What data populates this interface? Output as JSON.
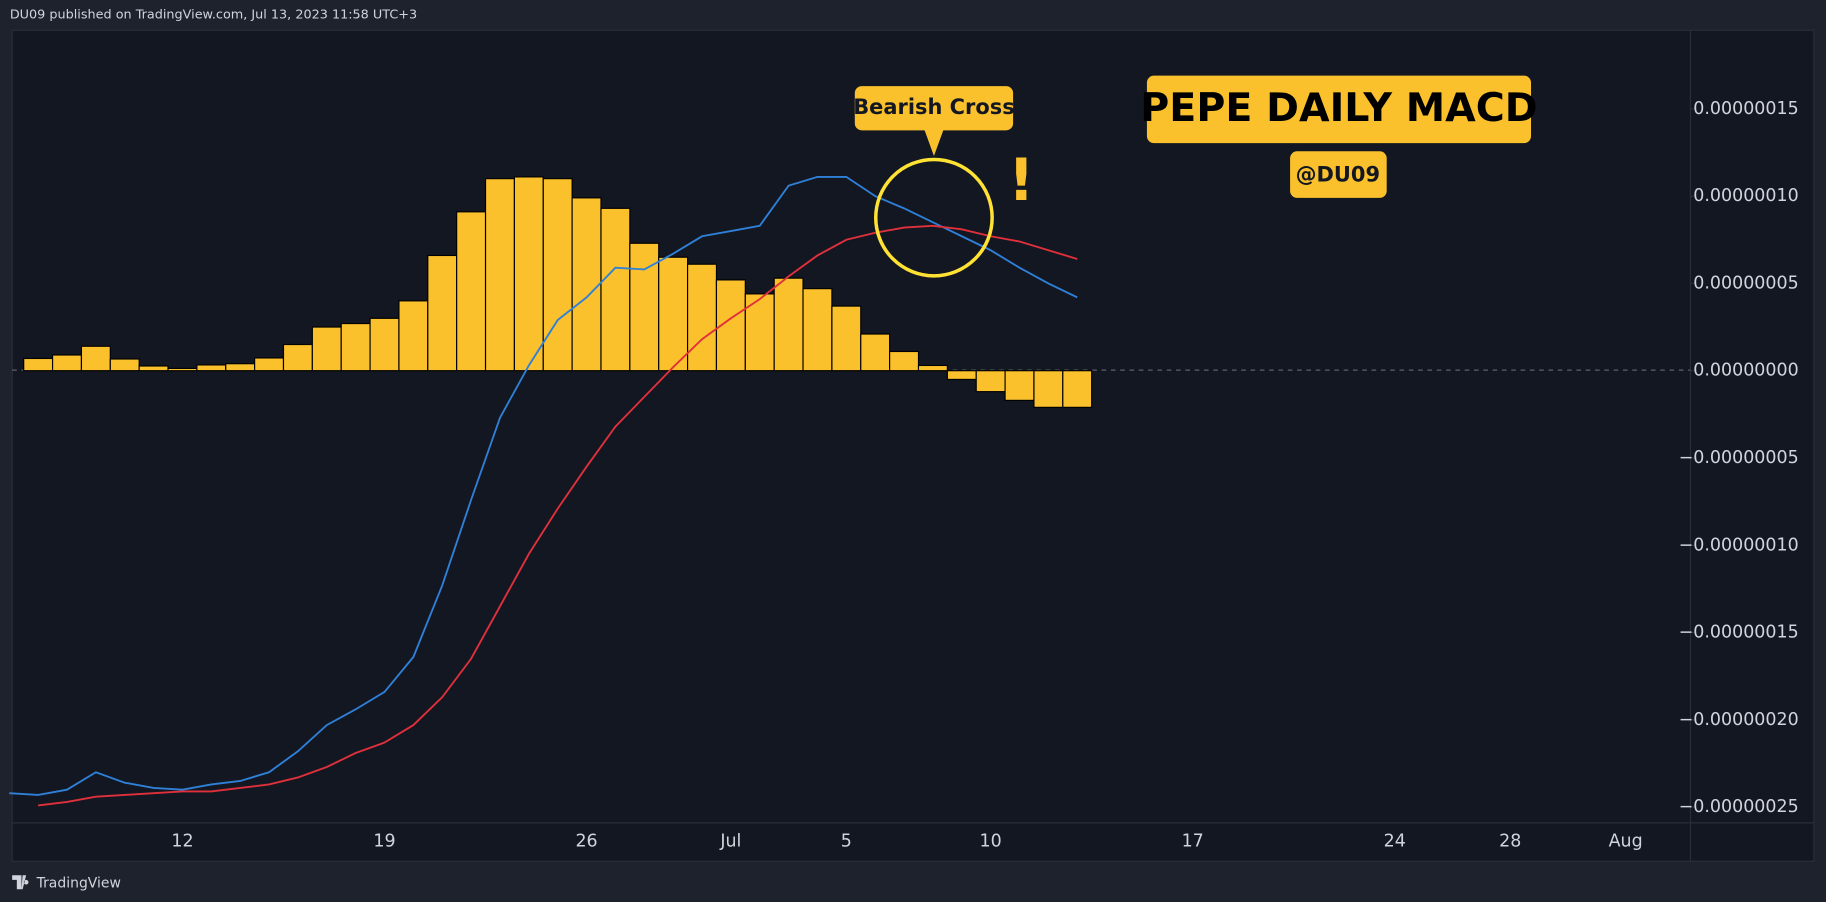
{
  "header": {
    "text": "DU09 published on TradingView.com, Jul 13, 2023 11:58 UTC+3"
  },
  "footer": {
    "brand": "TradingView"
  },
  "chart_data": {
    "type": "bar",
    "title": "PEPE DAILY MACD",
    "subtitle": "@DU09",
    "annotations": [
      {
        "text": "Bearish Cross"
      },
      {
        "text": "!"
      }
    ],
    "categories": [
      null,
      null,
      null,
      null,
      null,
      null,
      "12",
      null,
      null,
      null,
      null,
      null,
      null,
      "19",
      null,
      null,
      null,
      null,
      null,
      null,
      "26",
      null,
      null,
      null,
      null,
      "Jul",
      null,
      null,
      null,
      "5",
      null,
      null,
      null,
      null,
      "10",
      null,
      null,
      null,
      null,
      null,
      null,
      "17",
      null,
      null,
      null,
      null,
      null,
      null,
      "24",
      null,
      null,
      null,
      "28",
      null,
      null,
      null,
      "Aug",
      null
    ],
    "series": [
      {
        "type": "bar",
        "color": "#fbc12d",
        "values": [
          null,
          7e-09,
          9e-09,
          1.4e-08,
          6.7e-09,
          2.7e-09,
          1.3e-09,
          3.3e-09,
          4e-09,
          7.3e-09,
          1.5e-08,
          2.5e-08,
          2.7e-08,
          3e-08,
          4e-08,
          6.6e-08,
          9.1e-08,
          1.1e-07,
          1.11e-07,
          1.1e-07,
          9.9e-08,
          9.3e-08,
          7.3e-08,
          6.5e-08,
          6.1e-08,
          5.2e-08,
          4.4e-08,
          5.3e-08,
          4.7e-08,
          3.7e-08,
          2.1e-08,
          1.1e-08,
          3e-09,
          -5e-09,
          -1.2e-08,
          -1.7e-08,
          -2.1e-08,
          -2.1e-08,
          null,
          null,
          null,
          null,
          null,
          null,
          null,
          null,
          null,
          null,
          null,
          null,
          null,
          null,
          null,
          null,
          null,
          null,
          null,
          null
        ]
      },
      {
        "type": "line",
        "color": "#2f80d8",
        "values": [
          -2.42e-07,
          -2.43e-07,
          -2.4e-07,
          -2.3e-07,
          -2.36e-07,
          -2.39e-07,
          -2.4e-07,
          -2.37e-07,
          -2.35e-07,
          -2.3e-07,
          -2.18e-07,
          -2.03e-07,
          -1.94e-07,
          -1.84e-07,
          -1.64e-07,
          -1.23e-07,
          -7.4e-08,
          -2.7e-08,
          3e-09,
          2.9e-08,
          4.2e-08,
          5.9e-08,
          5.8e-08,
          6.7e-08,
          7.7e-08,
          8e-08,
          8.3e-08,
          1.06e-07,
          1.11e-07,
          1.11e-07,
          1e-07,
          9.3e-08,
          8.5e-08,
          7.7e-08,
          6.9e-08,
          5.9e-08,
          5e-08,
          4.2e-08,
          null,
          null,
          null,
          null,
          null,
          null,
          null,
          null,
          null,
          null,
          null,
          null,
          null,
          null,
          null,
          null,
          null,
          null,
          null,
          null
        ]
      },
      {
        "type": "line",
        "color": "#e0303b",
        "values": [
          null,
          -2.49e-07,
          -2.47e-07,
          -2.44e-07,
          -2.43e-07,
          -2.42e-07,
          -2.41e-07,
          -2.41e-07,
          -2.39e-07,
          -2.37e-07,
          -2.33e-07,
          -2.27e-07,
          -2.19e-07,
          -2.13e-07,
          -2.03e-07,
          -1.87e-07,
          -1.65e-07,
          -1.35e-07,
          -1.05e-07,
          -7.9e-08,
          -5.5e-08,
          -3.2e-08,
          -1.5e-08,
          2e-09,
          1.8e-08,
          3e-08,
          4.1e-08,
          5.4e-08,
          6.6e-08,
          7.5e-08,
          7.9e-08,
          8.2e-08,
          8.3e-08,
          8.1e-08,
          7.7e-08,
          7.4e-08,
          6.9e-08,
          6.4e-08,
          null,
          null,
          null,
          null,
          null,
          null,
          null,
          null,
          null,
          null,
          null,
          null,
          null,
          null,
          null,
          null,
          null,
          null,
          null,
          null
        ]
      }
    ],
    "ylim": [
      -2.59e-07,
      1.95e-07
    ],
    "yticks": [
      {
        "value": 1.5e-07,
        "label": "0.00000015"
      },
      {
        "value": 1e-07,
        "label": "0.00000010"
      },
      {
        "value": 5e-08,
        "label": "0.00000005"
      },
      {
        "value": 0,
        "label": "0.00000000"
      },
      {
        "value": -5e-08,
        "label": "−0.00000005"
      },
      {
        "value": -1e-07,
        "label": "−0.00000010"
      },
      {
        "value": -1.5e-07,
        "label": "−0.00000015"
      },
      {
        "value": -2e-07,
        "label": "−0.00000020"
      },
      {
        "value": -2.5e-07,
        "label": "−0.00000025"
      }
    ]
  }
}
